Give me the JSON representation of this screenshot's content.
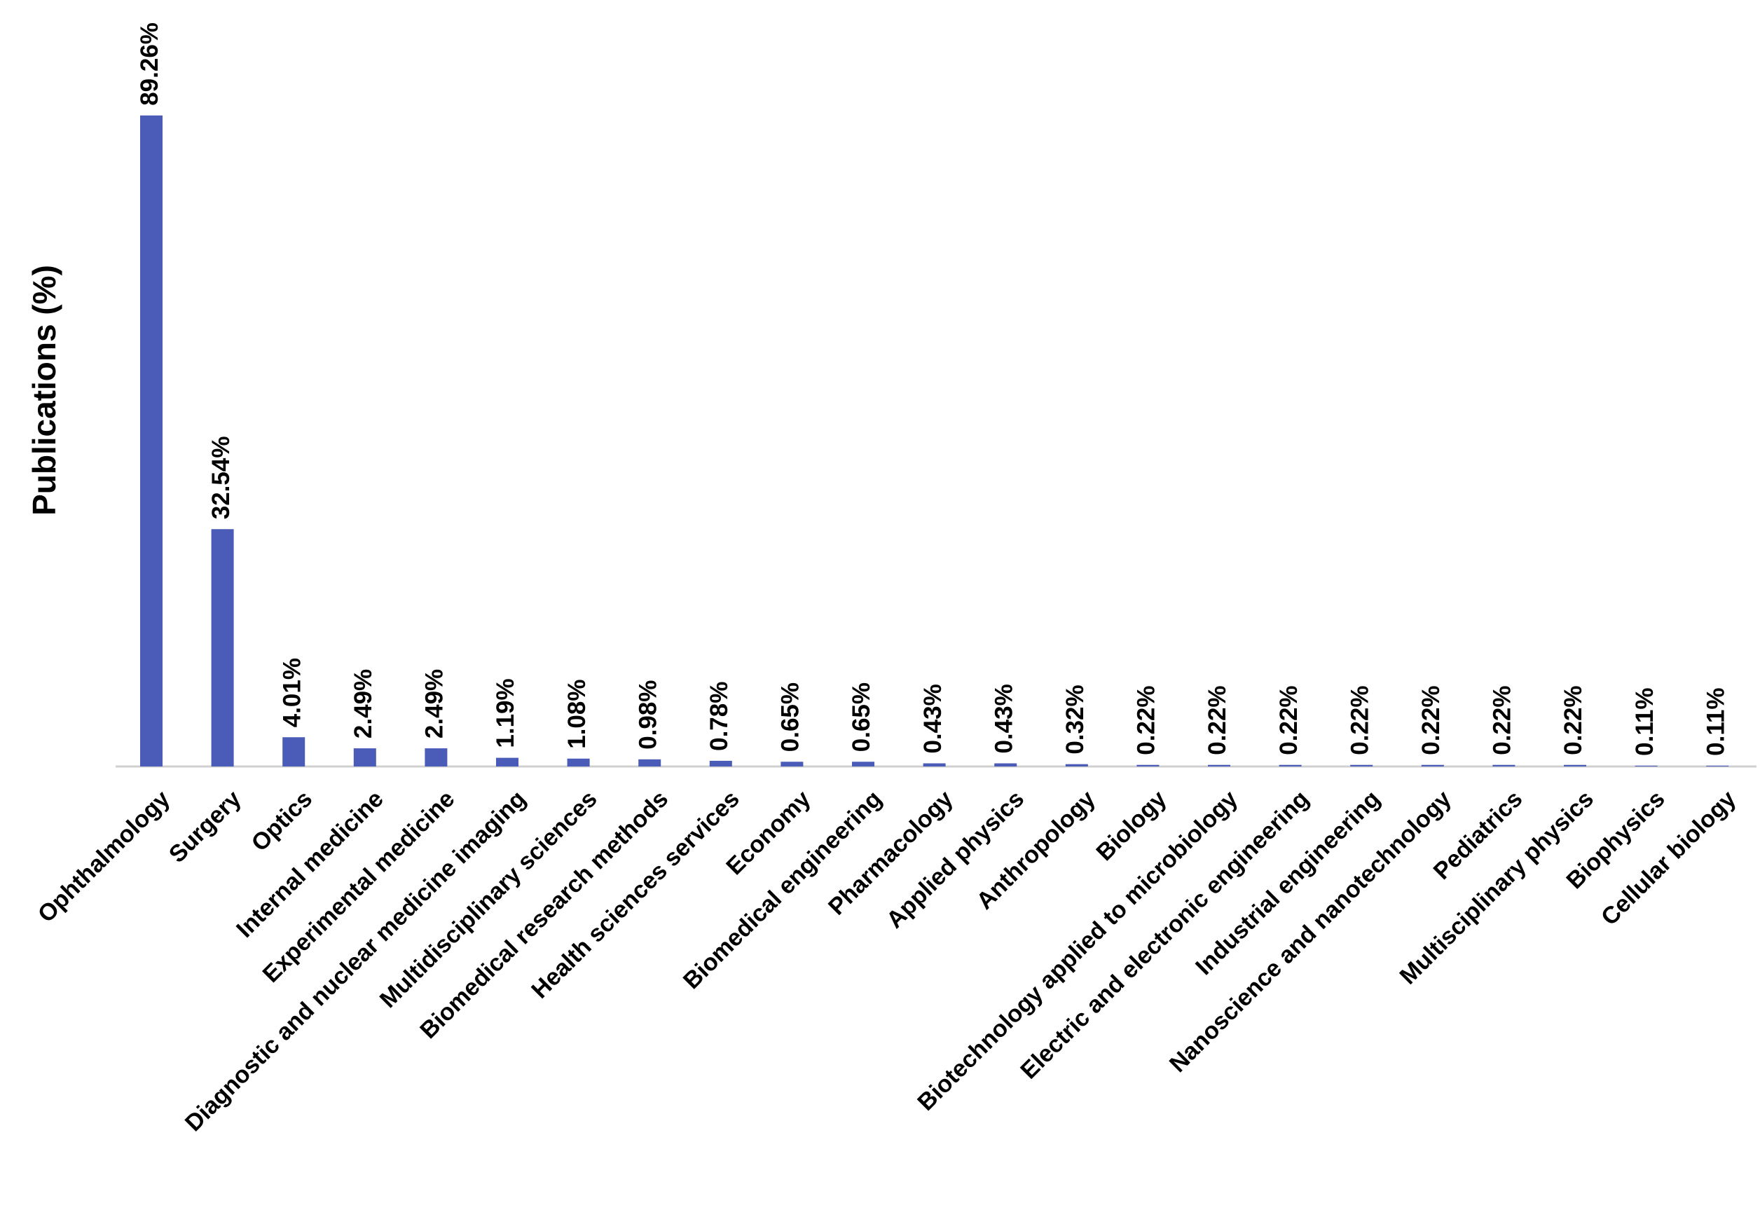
{
  "chart_data": {
    "type": "bar",
    "y_label": "Publications (%)",
    "categories": [
      "Ophthalmology",
      "Surgery",
      "Optics",
      "Internal medicine",
      "Experimental medicine",
      "Diagnostic and nuclear medicine imaging",
      "Multidisciplinary sciences",
      "Biomedical research methods",
      "Health sciences services",
      "Economy",
      "Biomedical engineering",
      "Pharmacology",
      "Applied physics",
      "Anthropology",
      "Biology",
      "Biotechnology applied to microbiology",
      "Electric and electronic engineering",
      "Industrial engineering",
      "Nanoscience and nanotechnology",
      "Pediatrics",
      "Multisciplinary physics",
      "Biophysics",
      "Cellular biology"
    ],
    "values": [
      89.26,
      32.54,
      4.01,
      2.49,
      2.49,
      1.19,
      1.08,
      0.98,
      0.78,
      0.65,
      0.65,
      0.43,
      0.43,
      0.32,
      0.22,
      0.22,
      0.22,
      0.22,
      0.22,
      0.22,
      0.22,
      0.11,
      0.11
    ],
    "value_labels": [
      "89.26%",
      "32.54%",
      "4.01%",
      "2.49%",
      "2.49%",
      "1.19%",
      "1.08%",
      "0.98%",
      "0.78%",
      "0.65%",
      "0.65%",
      "0.43%",
      "0.43%",
      "0.32%",
      "0.22%",
      "0.22%",
      "0.22%",
      "0.22%",
      "0.22%",
      "0.22%",
      "0.22%",
      "0.11%",
      "0.11%"
    ],
    "color": "#4a5bb8"
  }
}
